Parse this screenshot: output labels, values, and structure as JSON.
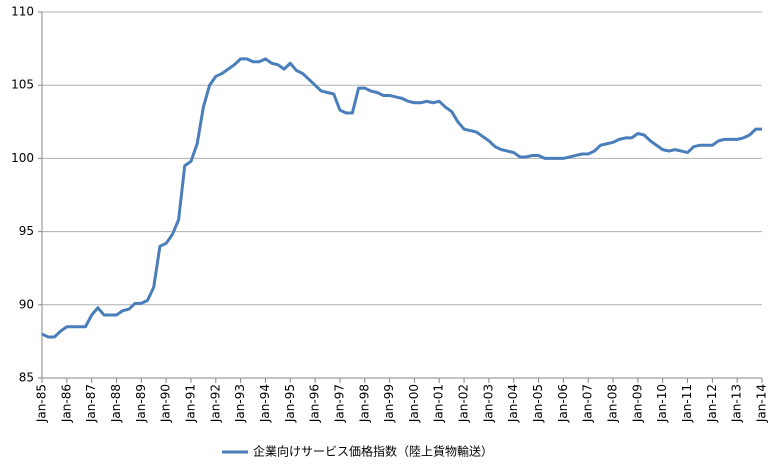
{
  "chart_data": {
    "type": "line",
    "categories": [
      "Jan-85",
      null,
      null,
      null,
      "Jan-86",
      null,
      null,
      null,
      "Jan-87",
      null,
      null,
      null,
      "Jan-88",
      null,
      null,
      null,
      "Jan-89",
      null,
      null,
      null,
      "Jan-90",
      null,
      null,
      null,
      "Jan-91",
      null,
      null,
      null,
      "Jan-92",
      null,
      null,
      null,
      "Jan-93",
      null,
      null,
      null,
      "Jan-94",
      null,
      null,
      null,
      "Jan-95",
      null,
      null,
      null,
      "Jan-96",
      null,
      null,
      null,
      "Jan-97",
      null,
      null,
      null,
      "Jan-98",
      null,
      null,
      null,
      "Jan-99",
      null,
      null,
      null,
      "Jan-00",
      null,
      null,
      null,
      "Jan-01",
      null,
      null,
      null,
      "Jan-02",
      null,
      null,
      null,
      "Jan-03",
      null,
      null,
      null,
      "Jan-04",
      null,
      null,
      null,
      "Jan-05",
      null,
      null,
      null,
      "Jan-06",
      null,
      null,
      null,
      "Jan-07",
      null,
      null,
      null,
      "Jan-08",
      null,
      null,
      null,
      "Jan-09",
      null,
      null,
      null,
      "Jan-10",
      null,
      null,
      null,
      "Jan-11",
      null,
      null,
      null,
      "Jan-12",
      null,
      null,
      null,
      "Jan-13",
      null,
      null,
      null,
      "Jan-14"
    ],
    "series": [
      {
        "name": "企業向けサービス価格指数（陸上貨物輸送）",
        "color": "#4a7ebb",
        "values": [
          88.0,
          87.8,
          87.8,
          88.2,
          88.5,
          88.5,
          88.5,
          88.5,
          89.3,
          89.8,
          89.3,
          89.3,
          89.3,
          89.6,
          89.7,
          90.1,
          90.1,
          90.3,
          91.2,
          94.0,
          94.2,
          94.8,
          95.8,
          99.5,
          99.8,
          101.0,
          103.5,
          105.0,
          105.6,
          105.8,
          106.1,
          106.4,
          106.8,
          106.8,
          106.6,
          106.6,
          106.8,
          106.5,
          106.4,
          106.1,
          106.5,
          106.0,
          105.8,
          105.4,
          105.0,
          104.6,
          104.5,
          104.4,
          103.3,
          103.1,
          103.1,
          104.8,
          104.8,
          104.6,
          104.5,
          104.3,
          104.3,
          104.2,
          104.1,
          103.9,
          103.8,
          103.8,
          103.9,
          103.8,
          103.9,
          103.5,
          103.2,
          102.5,
          102.0,
          101.9,
          101.8,
          101.5,
          101.2,
          100.8,
          100.6,
          100.5,
          100.4,
          100.1,
          100.1,
          100.2,
          100.2,
          100.0,
          100.0,
          100.0,
          100.0,
          100.1,
          100.2,
          100.3,
          100.3,
          100.5,
          100.9,
          101.0,
          101.1,
          101.3,
          101.4,
          101.4,
          101.7,
          101.6,
          101.2,
          100.9,
          100.6,
          100.5,
          100.6,
          100.5,
          100.4,
          100.8,
          100.9,
          100.9,
          100.9,
          101.2,
          101.3,
          101.3,
          101.3,
          101.4,
          101.6,
          102.0,
          102.0
        ]
      }
    ],
    "ylim": [
      85,
      110
    ],
    "yticks": [
      85,
      90,
      95,
      100,
      105,
      110
    ],
    "grid": true,
    "legend": "bottom"
  }
}
